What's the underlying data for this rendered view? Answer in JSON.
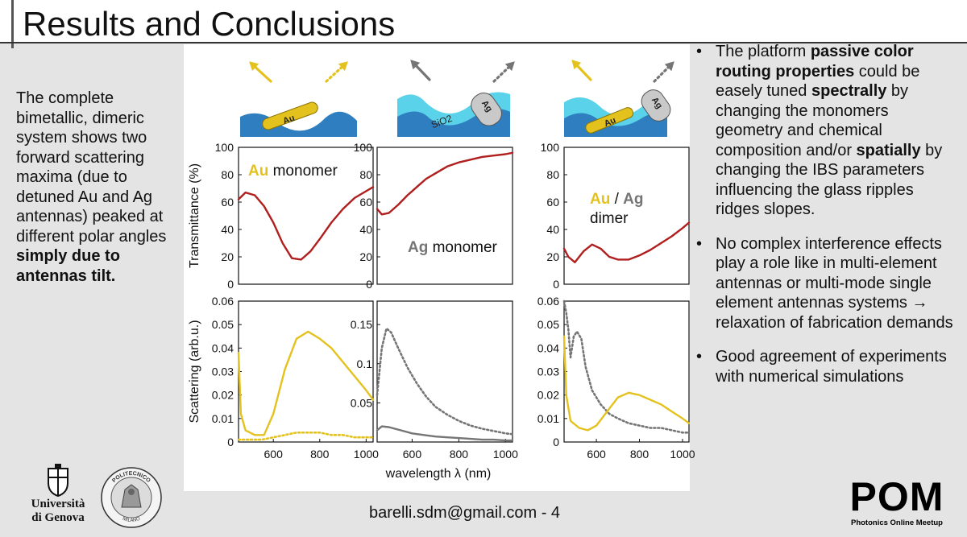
{
  "slide": {
    "title": "Results and Conclusions",
    "left_text": [
      {
        "t": "The complete bimetallic, dimeric system shows two forward scattering maxima (due to detuned Au and Ag antennas)  peaked at different polar angles ",
        "b": false
      },
      {
        "t": "simply due to antennas tilt.",
        "b": true
      }
    ],
    "bullets": [
      [
        {
          "t": "The platform ",
          "b": false
        },
        {
          "t": "passive color routing properties",
          "b": true
        },
        {
          "t": " could be easely tuned ",
          "b": false
        },
        {
          "t": "spectrally",
          "b": true
        },
        {
          "t": " by changing the  monomers geometry and chemical composition and/or ",
          "b": false
        },
        {
          "t": "spatially",
          "b": true
        },
        {
          "t": " by changing the IBS parameters influencing the glass ripples ridges slopes.",
          "b": false
        }
      ],
      [
        {
          "t": "No complex interference effects play a role like in multi-element antennas or multi-mode single element antennas systems → relaxation of fabrication demands",
          "b": false
        }
      ],
      [
        {
          "t": "Good agreement of experiments with numerical simulations",
          "b": false
        }
      ]
    ],
    "bullet_glyph": "•",
    "footer": "barelli.sdm@gmail.com - 4",
    "logos": {
      "unige_line1": "Università",
      "unige_line2": "di Genova",
      "polimi_top": "POLITECNICO",
      "polimi_bottom": "MILANO",
      "pom": "POM",
      "pom_sub": "Photonics Online Meetup"
    }
  },
  "colors": {
    "gold": "#e4c21e",
    "gray": "#757575",
    "red": "#b01e1e",
    "blue": "#2f7fc0",
    "cyan": "#5ad2ea"
  },
  "chart_data": [
    {
      "type": "line",
      "panel": "top-left",
      "ylabel": "Transmittance (%)",
      "ylim": [
        0,
        100
      ],
      "yticks": [
        "0",
        "20",
        "40",
        "60",
        "80",
        "100"
      ],
      "annotation": [
        {
          "text": "Au",
          "color": "gold"
        },
        {
          "text": " monomer",
          "color": "black"
        }
      ],
      "series": [
        {
          "color": "red",
          "style": "solid",
          "x": [
            450,
            480,
            520,
            560,
            600,
            640,
            680,
            720,
            760,
            800,
            850,
            900,
            950,
            1000,
            1030
          ],
          "y": [
            62,
            67,
            65,
            57,
            45,
            30,
            19,
            18,
            24,
            33,
            45,
            55,
            63,
            68,
            71
          ]
        }
      ]
    },
    {
      "type": "line",
      "panel": "top-middle",
      "ylim": [
        0,
        100
      ],
      "yticks": [
        "0",
        "20",
        "40",
        "60",
        "80",
        "100"
      ],
      "annotation": [
        {
          "text": "Ag",
          "color": "gray"
        },
        {
          "text": " monomer",
          "color": "black"
        }
      ],
      "series": [
        {
          "color": "red",
          "style": "solid",
          "x": [
            450,
            470,
            500,
            540,
            580,
            620,
            660,
            700,
            750,
            800,
            850,
            900,
            950,
            1000,
            1030
          ],
          "y": [
            55,
            51,
            52,
            58,
            65,
            71,
            77,
            81,
            86,
            89,
            91,
            93,
            94,
            95,
            96
          ]
        }
      ]
    },
    {
      "type": "line",
      "panel": "top-right",
      "ylim": [
        0,
        100
      ],
      "yticks": [
        "0",
        "20",
        "40",
        "60",
        "80",
        "100"
      ],
      "annotation": [
        {
          "text": "Au",
          "color": "gold"
        },
        {
          "text": " / ",
          "color": "black"
        },
        {
          "text": "Ag",
          "color": "gray"
        },
        {
          "text": "dimer",
          "color": "black"
        }
      ],
      "series": [
        {
          "color": "red",
          "style": "solid",
          "x": [
            450,
            470,
            500,
            540,
            580,
            620,
            660,
            700,
            750,
            800,
            850,
            900,
            950,
            1000,
            1030
          ],
          "y": [
            26,
            20,
            16,
            24,
            29,
            26,
            20,
            18,
            18,
            21,
            25,
            30,
            35,
            41,
            45
          ]
        }
      ]
    },
    {
      "type": "line",
      "panel": "bottom-left",
      "ylabel": "Scattering (arb.u.)",
      "ylim": [
        0,
        0.06
      ],
      "yticks": [
        "0",
        "0.01",
        "0.02",
        "0.03",
        "0.04",
        "0.05",
        "0.06"
      ],
      "xticks": [
        "600",
        "800",
        "1000"
      ],
      "xlim": [
        450,
        1030
      ],
      "series": [
        {
          "color": "gold",
          "style": "solid",
          "x": [
            450,
            460,
            480,
            520,
            560,
            600,
            650,
            700,
            750,
            800,
            850,
            900,
            950,
            1000,
            1030
          ],
          "y": [
            0.038,
            0.012,
            0.005,
            0.003,
            0.003,
            0.012,
            0.031,
            0.044,
            0.047,
            0.044,
            0.04,
            0.034,
            0.028,
            0.022,
            0.018
          ]
        },
        {
          "color": "gold",
          "style": "dotted",
          "x": [
            450,
            500,
            550,
            600,
            650,
            700,
            750,
            800,
            850,
            900,
            950,
            1000,
            1030
          ],
          "y": [
            0.001,
            0.001,
            0.001,
            0.002,
            0.003,
            0.004,
            0.004,
            0.004,
            0.003,
            0.003,
            0.002,
            0.002,
            0.002
          ]
        }
      ]
    },
    {
      "type": "line",
      "panel": "bottom-middle",
      "xlabel": "wavelength λ (nm)",
      "ylim": [
        0,
        0.18
      ],
      "yticks": [
        "0.05",
        "0.1",
        "0.15"
      ],
      "xticks": [
        "600",
        "800",
        "1000"
      ],
      "xlim": [
        450,
        1030
      ],
      "series": [
        {
          "color": "gray",
          "style": "dotted",
          "x": [
            450,
            470,
            490,
            510,
            540,
            580,
            620,
            660,
            700,
            750,
            800,
            850,
            900,
            950,
            1000,
            1030
          ],
          "y": [
            0.06,
            0.12,
            0.145,
            0.14,
            0.12,
            0.095,
            0.075,
            0.058,
            0.045,
            0.035,
            0.027,
            0.021,
            0.017,
            0.014,
            0.011,
            0.01
          ]
        },
        {
          "color": "gray",
          "style": "solid",
          "x": [
            450,
            470,
            500,
            550,
            600,
            650,
            700,
            750,
            800,
            850,
            900,
            950,
            1000,
            1030
          ],
          "y": [
            0.015,
            0.02,
            0.019,
            0.015,
            0.011,
            0.009,
            0.007,
            0.006,
            0.005,
            0.004,
            0.003,
            0.003,
            0.002,
            0.002
          ]
        }
      ]
    },
    {
      "type": "line",
      "panel": "bottom-right",
      "ylim": [
        0,
        0.06
      ],
      "yticks": [
        "0",
        "0.01",
        "0.02",
        "0.03",
        "0.04",
        "0.05",
        "0.06"
      ],
      "xticks": [
        "600",
        "800",
        "1000"
      ],
      "xlim": [
        450,
        1030
      ],
      "series": [
        {
          "color": "gray",
          "style": "dotted",
          "x": [
            450,
            460,
            470,
            480,
            495,
            510,
            530,
            550,
            580,
            620,
            660,
            700,
            750,
            800,
            850,
            900,
            950,
            1000,
            1030
          ],
          "y": [
            0.06,
            0.055,
            0.048,
            0.036,
            0.045,
            0.047,
            0.044,
            0.032,
            0.022,
            0.016,
            0.012,
            0.01,
            0.008,
            0.007,
            0.006,
            0.006,
            0.005,
            0.004,
            0.004
          ]
        },
        {
          "color": "gold",
          "style": "solid",
          "x": [
            450,
            460,
            480,
            520,
            560,
            600,
            650,
            700,
            750,
            800,
            850,
            900,
            950,
            1000,
            1030
          ],
          "y": [
            0.045,
            0.02,
            0.009,
            0.006,
            0.005,
            0.007,
            0.013,
            0.019,
            0.021,
            0.02,
            0.018,
            0.016,
            0.013,
            0.01,
            0.008
          ]
        }
      ]
    }
  ],
  "schematics": {
    "left": {
      "rod_label": "Au",
      "arrow_left": "gold",
      "arrow_right": "gold-dotted"
    },
    "middle": {
      "layer_label": "SiO2",
      "cap_label": "Ag",
      "arrow_left": "gray",
      "arrow_right": "gray-dotted"
    },
    "right": {
      "rod_label": "Au",
      "cap_label": "Ag",
      "arrow_left": "gold",
      "arrow_right": "gray-dotted"
    }
  }
}
